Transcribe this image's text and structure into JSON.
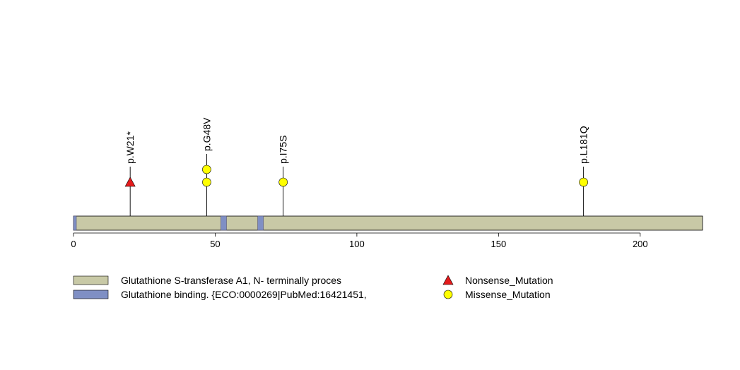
{
  "chart_data": {
    "type": "lollipop",
    "protein_length": 222,
    "x_ticks": [
      0,
      50,
      100,
      150,
      200
    ],
    "x_tick_labels": [
      "0",
      "50",
      "100",
      "150",
      "200"
    ],
    "domains": [
      {
        "name": "Glutathione S-transferase A1, N- terminally proces",
        "start": 1,
        "end": 222,
        "color": "#c8c9a6"
      },
      {
        "name": "Glutathione binding. {ECO:0000269|PubMed:16421451,",
        "start": 1,
        "end": 1,
        "color": "#7f8fc4"
      },
      {
        "name": "Glutathione binding. {ECO:0000269|PubMed:16421451,",
        "start": 53,
        "end": 54,
        "color": "#7f8fc4"
      },
      {
        "name": "Glutathione binding. {ECO:0000269|PubMed:16421451,",
        "start": 66,
        "end": 67,
        "color": "#7f8fc4"
      }
    ],
    "mutations": [
      {
        "label": "p.W21*",
        "position": 20,
        "type": "Nonsense_Mutation",
        "count": 1
      },
      {
        "label": "p.G48V",
        "position": 47,
        "type": "Missense_Mutation",
        "count": 2
      },
      {
        "label": "p.I75S",
        "position": 74,
        "type": "Missense_Mutation",
        "count": 1
      },
      {
        "label": "p.L181Q",
        "position": 180,
        "type": "Missense_Mutation",
        "count": 1
      }
    ],
    "legend": {
      "domains": [
        {
          "label": "Glutathione S-transferase A1, N- terminally proces",
          "color": "#c8c9a6"
        },
        {
          "label": "Glutathione binding. {ECO:0000269|PubMed:16421451,",
          "color": "#7f8fc4"
        }
      ],
      "mutation_types": [
        {
          "label": "Nonsense_Mutation",
          "shape": "triangle",
          "color": "#e41a1c"
        },
        {
          "label": "Missense_Mutation",
          "shape": "circle",
          "color": "#ffff00"
        }
      ]
    }
  }
}
